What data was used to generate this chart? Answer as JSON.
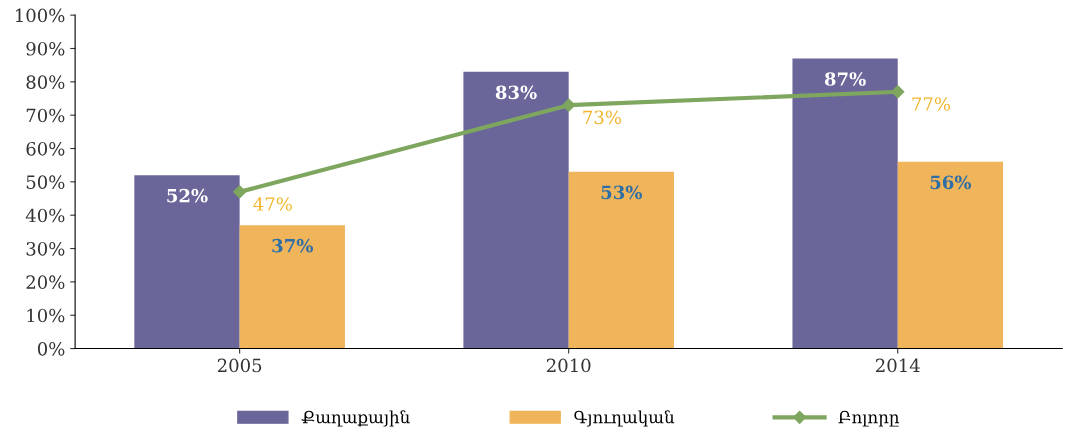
{
  "chart_data": {
    "type": "bar",
    "categories": [
      "2005",
      "2010",
      "2014"
    ],
    "series": [
      {
        "name": "Քաղաքային",
        "color": "#6b6699",
        "values": [
          52,
          83,
          87
        ],
        "value_labels": [
          "52%",
          "83%",
          "87%"
        ]
      },
      {
        "name": "Գյուղական",
        "color": "#f0b55b",
        "values": [
          37,
          53,
          56
        ],
        "value_labels": [
          "37%",
          "53%",
          "56%"
        ]
      },
      {
        "name": "Բոլորը",
        "type": "line",
        "color": "#7ea65e",
        "marker": "diamond",
        "values": [
          47,
          73,
          77
        ],
        "value_labels": [
          "47%",
          "73%",
          "77%"
        ]
      }
    ],
    "ylim": [
      0,
      100
    ],
    "yticks": [
      {
        "value": 0,
        "label": "0%"
      },
      {
        "value": 10,
        "label": "10%"
      },
      {
        "value": 20,
        "label": "20%"
      },
      {
        "value": 30,
        "label": "30%"
      },
      {
        "value": 40,
        "label": "40%"
      },
      {
        "value": 50,
        "label": "50%"
      },
      {
        "value": 60,
        "label": "60%"
      },
      {
        "value": 70,
        "label": "70%"
      },
      {
        "value": 80,
        "label": "80%"
      },
      {
        "value": 90,
        "label": "90%"
      },
      {
        "value": 100,
        "label": "100%"
      }
    ],
    "grid": false,
    "legend": "bottom"
  }
}
